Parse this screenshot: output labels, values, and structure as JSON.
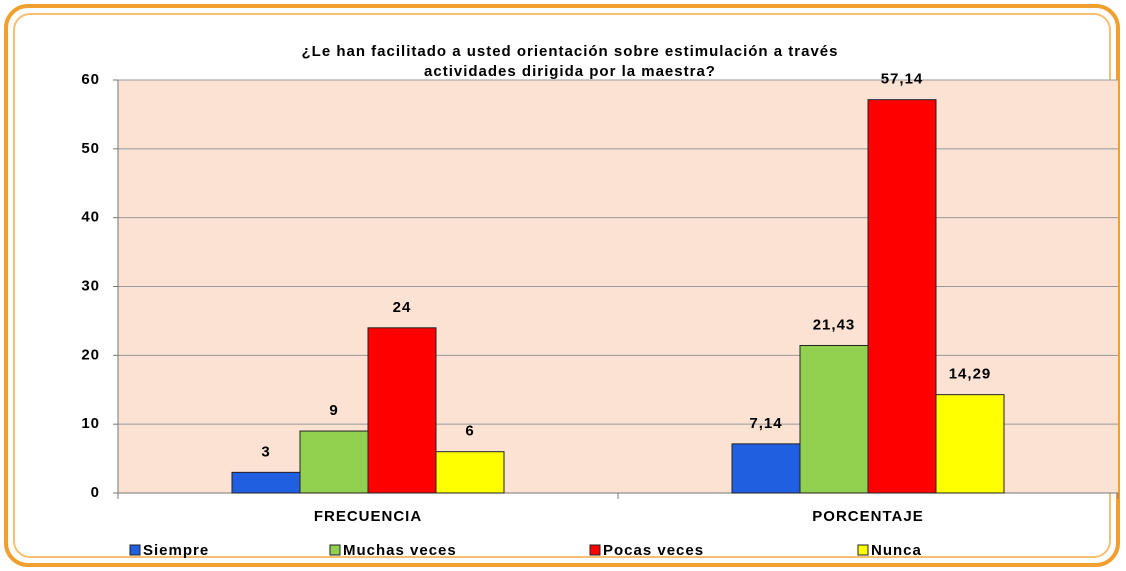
{
  "chart_data": {
    "type": "bar",
    "title": [
      "¿Le han facilitado a usted orientación sobre estimulación a través",
      "actividades dirigida por la maestra?"
    ],
    "categories": [
      "FRECUENCIA",
      "PORCENTAJE"
    ],
    "series": [
      {
        "name": "Siempre",
        "color": "#1f5fe0",
        "values": [
          3,
          7.14
        ],
        "value_labels": [
          "3",
          "7,14"
        ]
      },
      {
        "name": "Muchas veces",
        "color": "#92d050",
        "values": [
          9,
          21.43
        ],
        "value_labels": [
          "9",
          "21,43"
        ]
      },
      {
        "name": "Pocas veces",
        "color": "#ff0000",
        "values": [
          24,
          57.14
        ],
        "value_labels": [
          "24",
          "57,14"
        ]
      },
      {
        "name": "Nunca",
        "color": "#ffff00",
        "values": [
          6,
          14.29
        ],
        "value_labels": [
          "6",
          "14,29"
        ]
      }
    ],
    "ylim": [
      0,
      60
    ],
    "yticks": [
      0,
      10,
      20,
      30,
      40,
      50,
      60
    ],
    "grid": true,
    "legend": "bottom"
  }
}
